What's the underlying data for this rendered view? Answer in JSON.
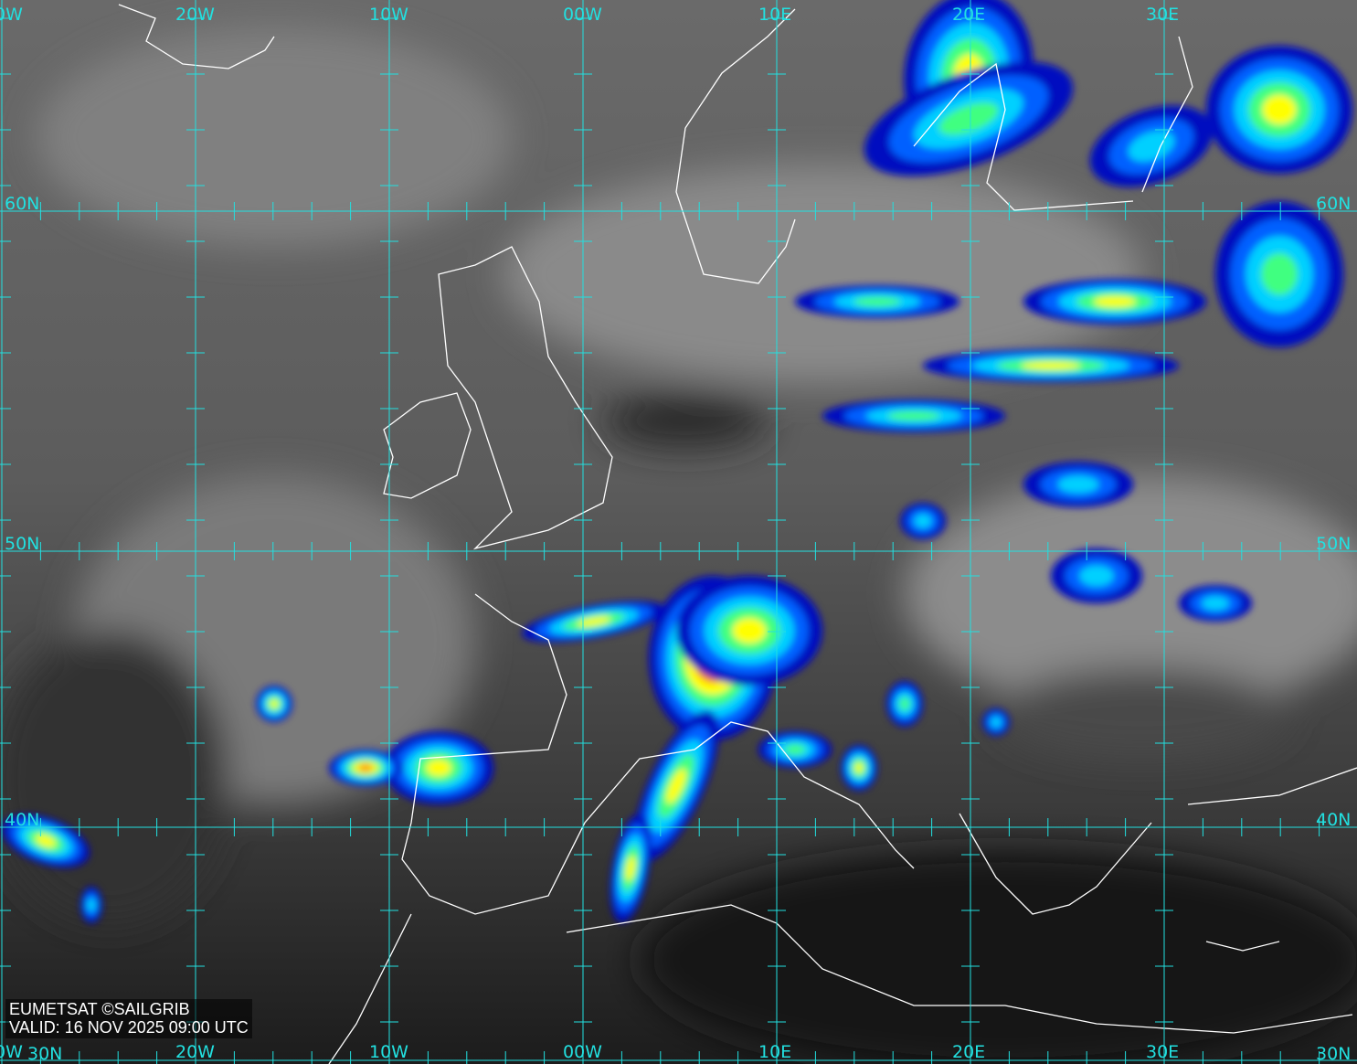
{
  "map": {
    "type": "satellite infrared composite",
    "grid_color": "#22e0e0",
    "coastline_color": "#ffffff",
    "precip_colors": [
      "#0010c0",
      "#0060ff",
      "#00d0ff",
      "#40ff80",
      "#ffff00",
      "#ff8000",
      "#e00000"
    ],
    "top_lon_labels": [
      "0W",
      "20W",
      "10W",
      "00W",
      "10E",
      "20E",
      "30E"
    ],
    "bottom_lon_labels": [
      "0W",
      "20W",
      "10W",
      "00W",
      "10E",
      "20E",
      "30E"
    ],
    "left_lat_labels": [
      "60N",
      "50N",
      "40N",
      "30N"
    ],
    "right_lat_labels": [
      "60N",
      "50N",
      "40N",
      "30N"
    ]
  },
  "credit": {
    "source": "EUMETSAT ©SAILGRIB",
    "valid": "VALID:  16 NOV 2025 09:00 UTC"
  }
}
